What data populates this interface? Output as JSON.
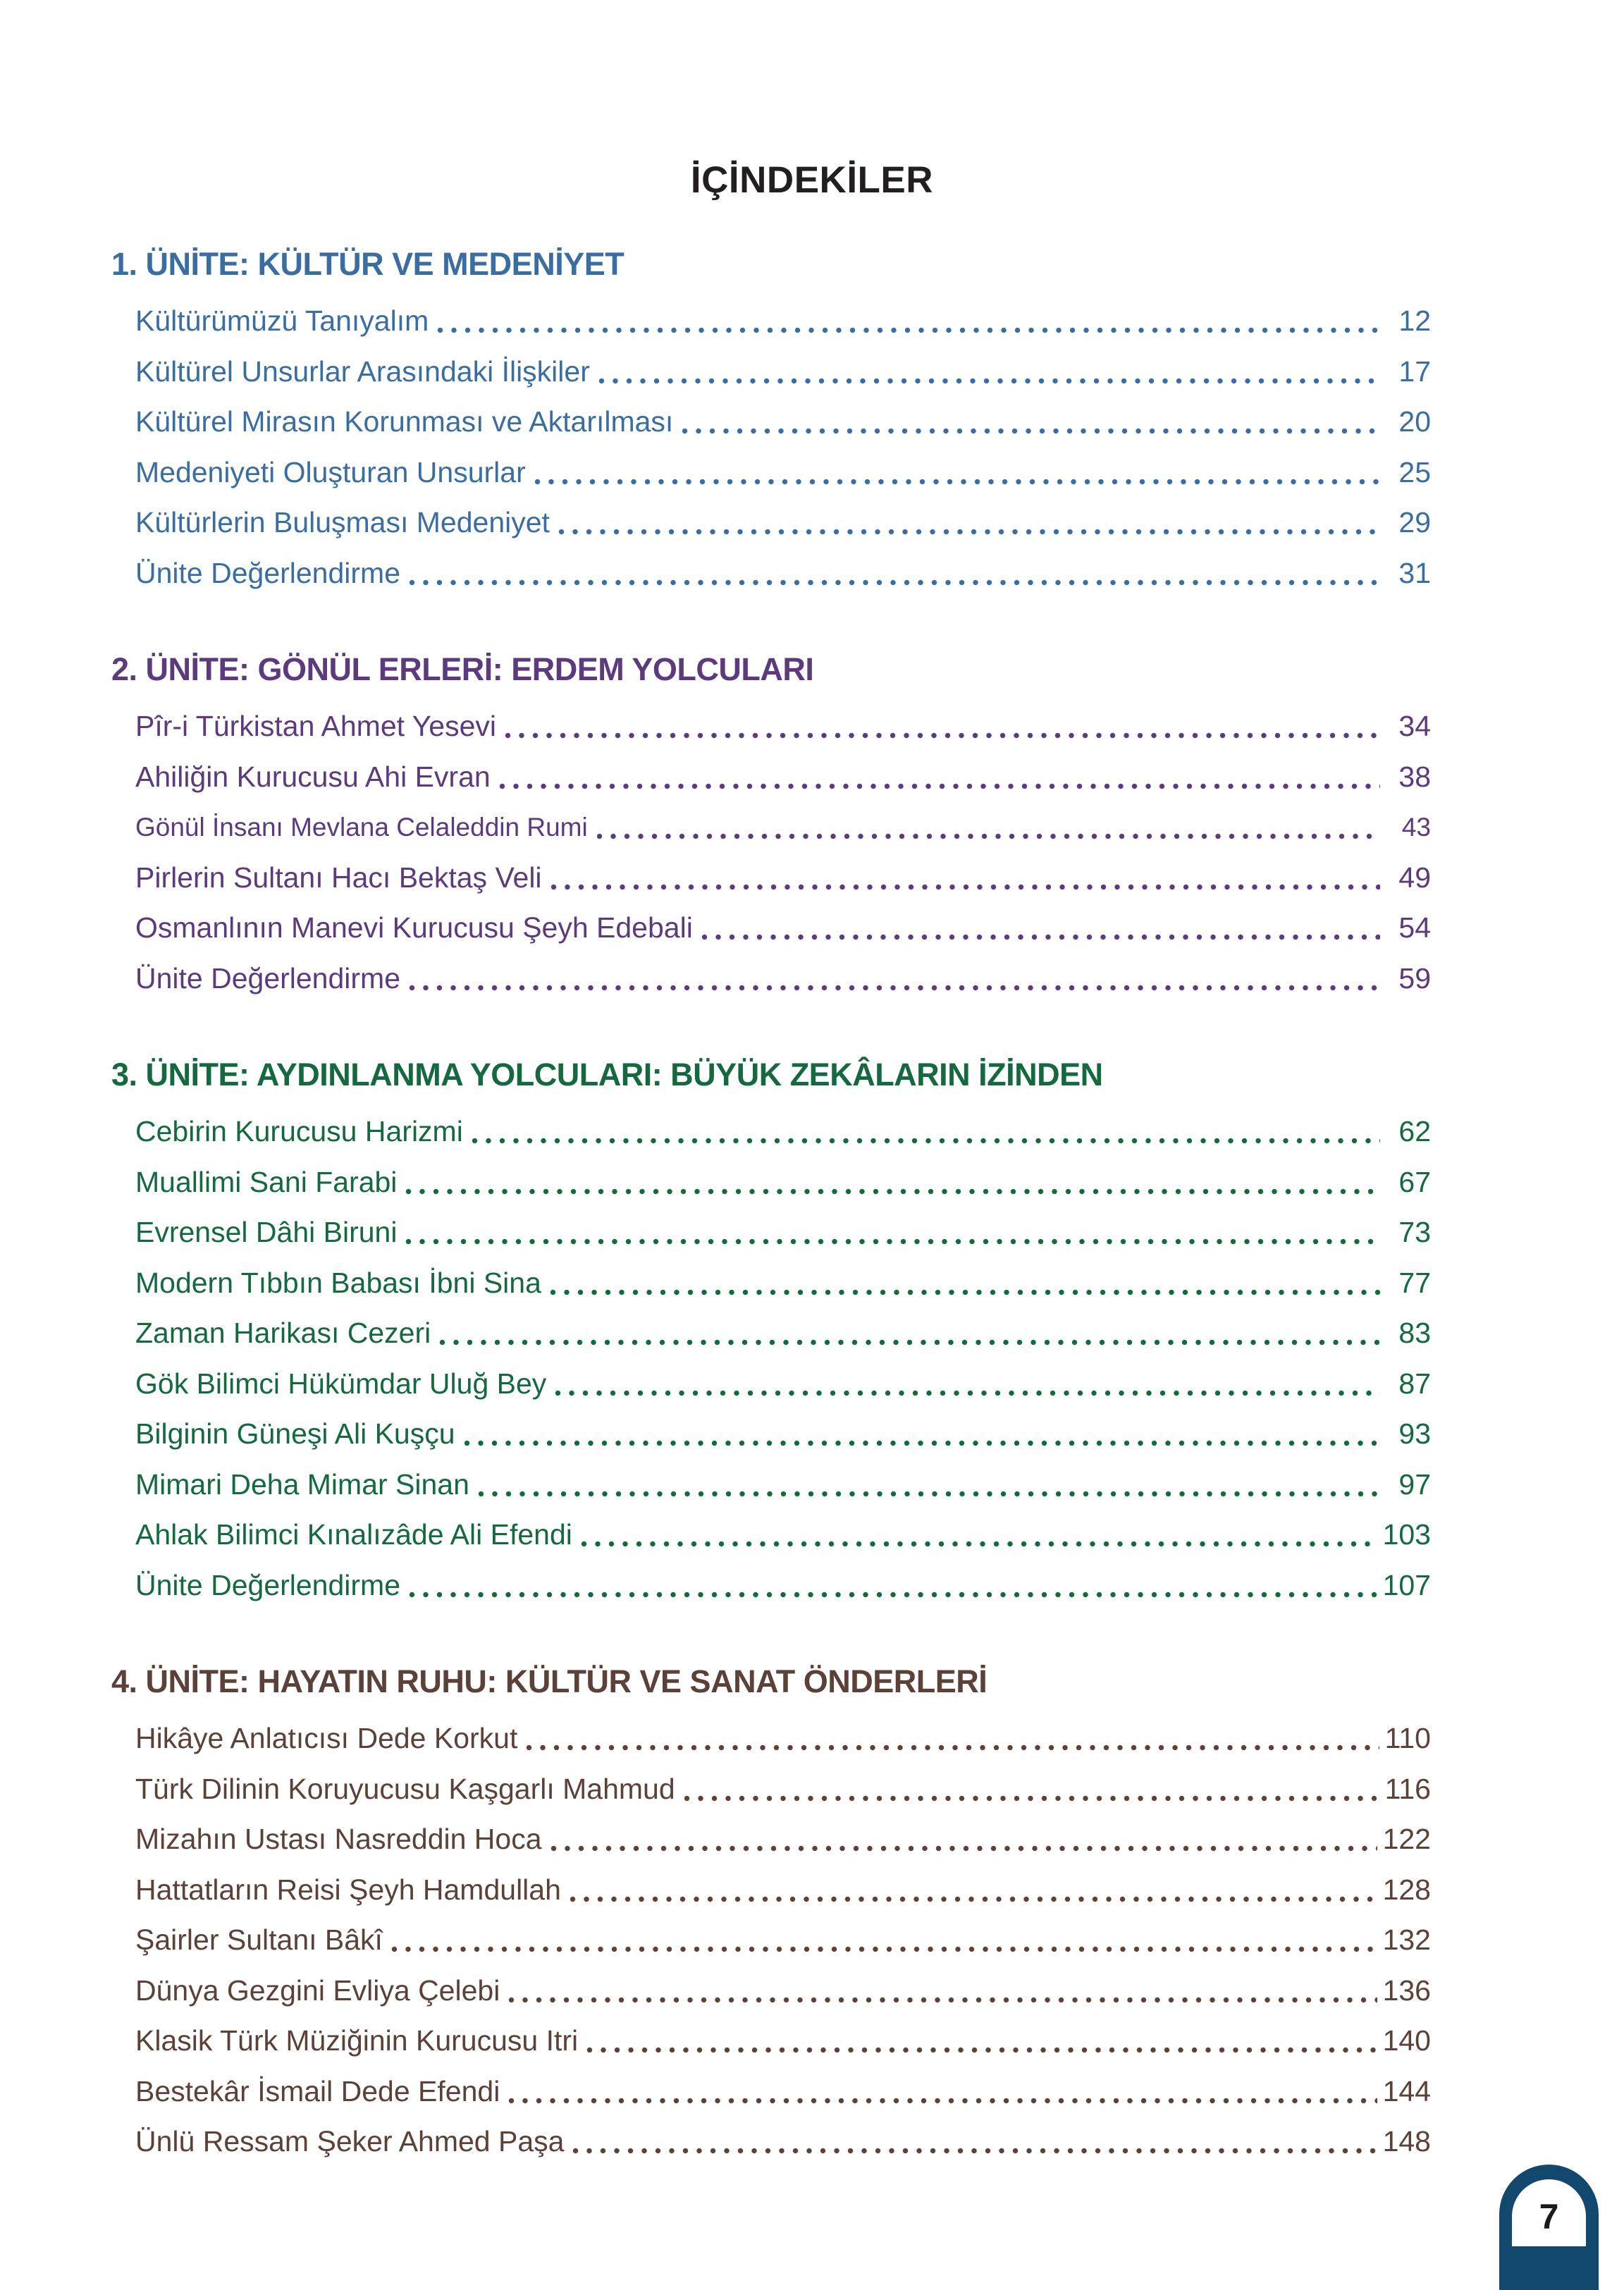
{
  "page": {
    "title": "İÇİNDEKİLER",
    "page_number": "7",
    "colors": {
      "title": "#231f20",
      "badge": "#12486d",
      "badge_number": "#1b1b1b",
      "unit1": "#3a6da1",
      "unit2": "#5b3b7e",
      "unit3": "#15693f",
      "unit4": "#5c4138"
    }
  },
  "units": [
    {
      "heading": "1. ÜNİTE: KÜLTÜR VE MEDENİYET",
      "color": "#3a6da1",
      "items": [
        {
          "label": "Kültürümüzü Tanıyalım",
          "page": "12"
        },
        {
          "label": "Kültürel Unsurlar Arasındaki İlişkiler",
          "page": "17"
        },
        {
          "label": "Kültürel Mirasın Korunması ve Aktarılması",
          "page": "20"
        },
        {
          "label": "Medeniyeti Oluşturan Unsurlar",
          "page": "25"
        },
        {
          "label": "Kültürlerin Buluşması Medeniyet",
          "page": "29"
        },
        {
          "label": "Ünite Değerlendirme",
          "page": "31"
        }
      ]
    },
    {
      "heading": "2. ÜNİTE: GÖNÜL ERLERİ: ERDEM YOLCULARI",
      "color": "#5b3b7e",
      "items": [
        {
          "label": "Pîr-i Türkistan Ahmet Yesevi",
          "page": "34"
        },
        {
          "label": "Ahiliğin Kurucusu Ahi Evran",
          "page": "38"
        },
        {
          "label": "Gönül İnsanı Mevlana Celaleddin Rumi",
          "page": "43",
          "small": true
        },
        {
          "label": "Pirlerin Sultanı Hacı Bektaş Veli",
          "page": "49"
        },
        {
          "label": "Osmanlının Manevi Kurucusu Şeyh Edebali",
          "page": "54"
        },
        {
          "label": "Ünite Değerlendirme",
          "page": "59"
        }
      ]
    },
    {
      "heading": "3. ÜNİTE: AYDINLANMA YOLCULARI: BÜYÜK ZEKÂLARIN İZİNDEN",
      "color": "#15693f",
      "items": [
        {
          "label": "Cebirin Kurucusu Harizmi",
          "page": "62"
        },
        {
          "label": "Muallimi Sani Farabi",
          "page": "67"
        },
        {
          "label": "Evrensel Dâhi Biruni",
          "page": "73"
        },
        {
          "label": "Modern Tıbbın Babası İbni Sina",
          "page": "77"
        },
        {
          "label": "Zaman Harikası Cezeri",
          "page": "83"
        },
        {
          "label": "Gök Bilimci Hükümdar Uluğ Bey",
          "page": "87"
        },
        {
          "label": "Bilginin Güneşi Ali Kuşçu",
          "page": "93"
        },
        {
          "label": "Mimari Deha Mimar Sinan",
          "page": "97"
        },
        {
          "label": "Ahlak Bilimci Kınalızâde Ali Efendi",
          "page": "103"
        },
        {
          "label": "Ünite Değerlendirme",
          "page": "107"
        }
      ]
    },
    {
      "heading": "4. ÜNİTE: HAYATIN RUHU: KÜLTÜR VE SANAT ÖNDERLERİ",
      "color": "#5c4138",
      "items": [
        {
          "label": "Hikâye Anlatıcısı Dede Korkut",
          "page": "110"
        },
        {
          "label": "Türk Dilinin Koruyucusu Kaşgarlı Mahmud",
          "page": "116"
        },
        {
          "label": "Mizahın Ustası Nasreddin Hoca",
          "page": "122"
        },
        {
          "label": "Hattatların Reisi Şeyh Hamdullah",
          "page": "128"
        },
        {
          "label": "Şairler Sultanı Bâkî",
          "page": "132"
        },
        {
          "label": "Dünya Gezgini Evliya Çelebi",
          "page": "136"
        },
        {
          "label": "Klasik Türk Müziğinin Kurucusu Itri",
          "page": "140"
        },
        {
          "label": "Bestekâr İsmail Dede Efendi",
          "page": "144"
        },
        {
          "label": "Ünlü Ressam Şeker Ahmed Paşa",
          "page": "148"
        }
      ]
    }
  ]
}
